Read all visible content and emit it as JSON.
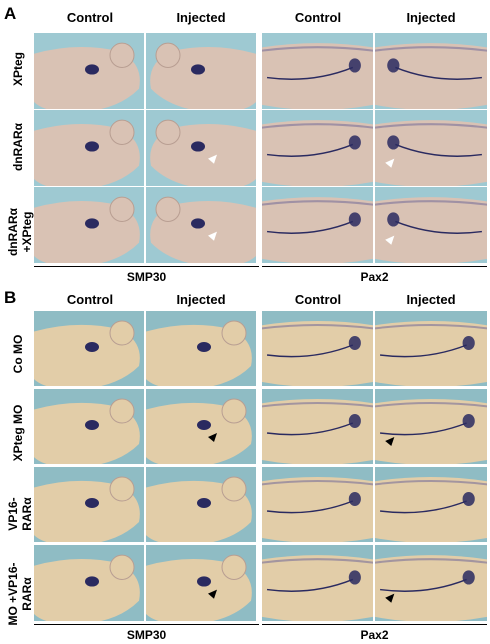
{
  "panel_a": {
    "letter": "A",
    "col_headers": [
      "Control",
      "Injected",
      "Control",
      "Injected"
    ],
    "row_labels": [
      "XPteg",
      "dnRARα",
      "dnRARα\n+XPteg"
    ],
    "footer_left": "SMP30",
    "footer_right": "Pax2"
  },
  "panel_b": {
    "letter": "B",
    "col_headers": [
      "Control",
      "Injected",
      "Control",
      "Injected"
    ],
    "row_labels": [
      "Co MO",
      "XPteg MO",
      "VP16-\nRARα",
      "MO +VP16-\nRARα"
    ],
    "footer_left": "SMP30",
    "footer_right": "Pax2"
  },
  "colors": {
    "background_A": "#9ec9d2",
    "embryo_A": "#d9c2b4",
    "background_B": "#8fbcc4",
    "embryo_B": "#e2cda8",
    "stain": "#2a2a60",
    "arrow_white": "#ffffff",
    "arrow_black": "#000000"
  }
}
